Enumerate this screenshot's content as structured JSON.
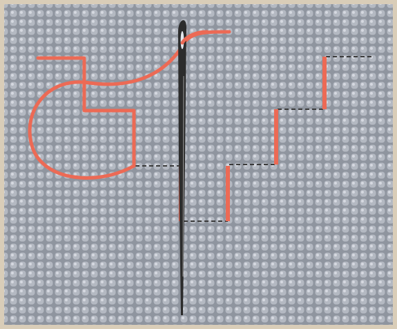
{
  "illustration": {
    "subject": "embroidery-stitch-on-canvas",
    "icon": "needle-icon",
    "colors": {
      "frame": "#d9cdb8",
      "canvas": "#b4b9c2",
      "canvas_light": "#e4e8ee",
      "canvas_shadow": "#8f959f",
      "thread": "#ec6a55",
      "thread_highlight": "#f6a190",
      "back_stitch_dash": "#3a3a3a",
      "needle": "#2c2c2c",
      "needle_highlight": "#9a9a9a"
    }
  }
}
